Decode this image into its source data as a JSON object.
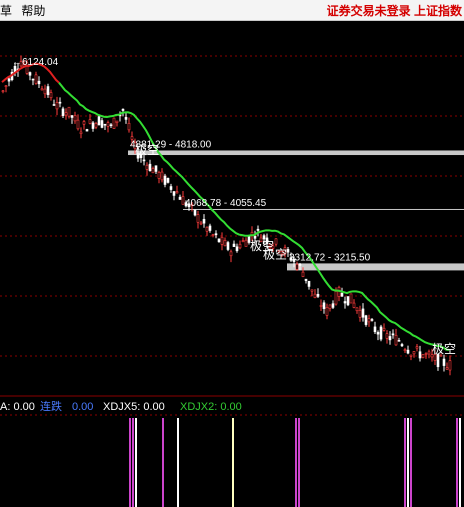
{
  "menu": {
    "left_item_cut": "草",
    "help": "帮助",
    "status_text": "证券交易未登录",
    "shanghai_index": "上证指数"
  },
  "chart_data": {
    "type": "candlestick",
    "peak_label": "6124.04",
    "gaps": [
      {
        "label": "4881.29 - 4818.00",
        "top": 4881.29,
        "bottom": 4818.0
      },
      {
        "label": "4068.78 - 4055.45",
        "top": 4068.78,
        "bottom": 4055.45
      },
      {
        "label": "3312.72 - 3215.50",
        "top": 3312.72,
        "bottom": 3215.5
      }
    ],
    "signals": [
      "极空",
      "极空",
      "极空",
      "极空"
    ],
    "indicator": {
      "a_label": "A: 0.00",
      "lianlie_name": "连跌",
      "lianlie_value": "0.00",
      "xdjx5": "XDJX5: 0.00",
      "xdjx2": "XDJX2: 0.00"
    },
    "colors": {
      "up": "#ff3c3c",
      "down": "#ffffff",
      "ma": "#33dd33",
      "ma_early": "#e02020",
      "gap_band": "#c8c8c8",
      "grid": "#8b0000",
      "signal": "#ffffff",
      "xdjx5_bar": "#cc44cc",
      "xdjx2_label": "#33cc33",
      "lianlie_label": "#4a7bff"
    }
  }
}
